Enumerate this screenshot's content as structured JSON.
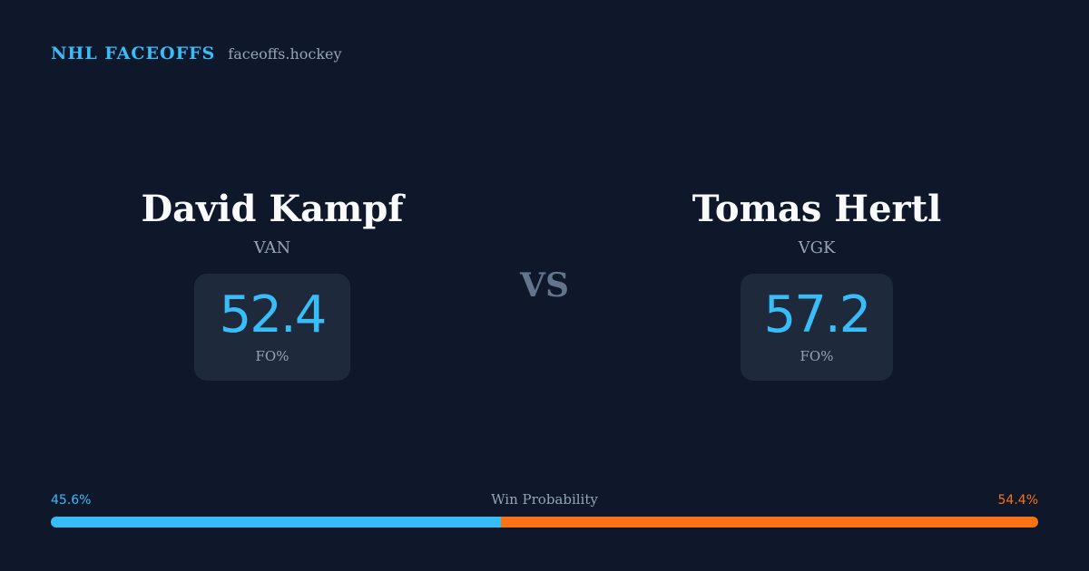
{
  "brand": {
    "title": "NHL FACEOFFS",
    "site": "faceoffs.hockey"
  },
  "players": {
    "left": {
      "name": "David Kampf",
      "team": "VAN",
      "fo_pct": "52.4",
      "fo_label": "FO%"
    },
    "right": {
      "name": "Tomas Hertl",
      "team": "VGK",
      "fo_pct": "57.2",
      "fo_label": "FO%"
    }
  },
  "vs": "VS",
  "win_probability": {
    "title": "Win Probability",
    "left_label": "45.6%",
    "right_label": "54.4%",
    "left_value": 45.6,
    "right_value": 54.4
  },
  "colors": {
    "background": "#0f172a",
    "accent_left": "#38bdf8",
    "accent_right": "#f97316",
    "card": "#1e293b"
  }
}
